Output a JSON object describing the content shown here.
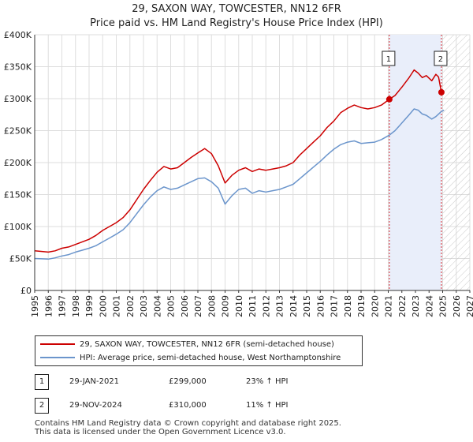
{
  "title": "29, SAXON WAY, TOWCESTER, NN12 6FR",
  "subtitle": "Price paid vs. HM Land Registry's House Price Index (HPI)",
  "colors": {
    "property": "#cc0000",
    "hpi": "#6b95cc",
    "shade": "#e9eefa",
    "marker_line": "#d2222a",
    "grid": "#dddddd"
  },
  "chart_data": {
    "type": "line",
    "xlim": [
      1995,
      2027
    ],
    "ylim": [
      0,
      400000
    ],
    "x_ticks": [
      "1995",
      "1996",
      "1997",
      "1998",
      "1999",
      "2000",
      "2001",
      "2002",
      "2003",
      "2004",
      "2005",
      "2006",
      "2007",
      "2008",
      "2009",
      "2010",
      "2011",
      "2012",
      "2013",
      "2014",
      "2015",
      "2016",
      "2017",
      "2018",
      "2019",
      "2020",
      "2021",
      "2022",
      "2023",
      "2024",
      "2025",
      "2026",
      "2027"
    ],
    "y_ticks": [
      {
        "value": 0,
        "label": "£0"
      },
      {
        "value": 50000,
        "label": "£50K"
      },
      {
        "value": 100000,
        "label": "£100K"
      },
      {
        "value": 150000,
        "label": "£150K"
      },
      {
        "value": 200000,
        "label": "£200K"
      },
      {
        "value": 250000,
        "label": "£250K"
      },
      {
        "value": 300000,
        "label": "£300K"
      },
      {
        "value": 350000,
        "label": "£350K"
      },
      {
        "value": 400000,
        "label": "£400K"
      }
    ],
    "shaded_period": [
      2021.08,
      2024.91
    ],
    "forecast_hatch_from": 2025.0,
    "series": [
      {
        "name": "29, SAXON WAY, TOWCESTER, NN12 6FR (semi-detached house)",
        "color": "#cc0000",
        "points": [
          [
            1995,
            62000
          ],
          [
            1996,
            60000
          ],
          [
            1996.5,
            62000
          ],
          [
            1997,
            66000
          ],
          [
            1997.5,
            68000
          ],
          [
            1998,
            72000
          ],
          [
            1998.5,
            76000
          ],
          [
            1999,
            80000
          ],
          [
            1999.5,
            86000
          ],
          [
            2000,
            94000
          ],
          [
            2000.5,
            100000
          ],
          [
            2001,
            106000
          ],
          [
            2001.5,
            114000
          ],
          [
            2002,
            126000
          ],
          [
            2002.5,
            142000
          ],
          [
            2003,
            158000
          ],
          [
            2003.5,
            172000
          ],
          [
            2004,
            185000
          ],
          [
            2004.5,
            194000
          ],
          [
            2005,
            190000
          ],
          [
            2005.5,
            192000
          ],
          [
            2006,
            200000
          ],
          [
            2006.5,
            208000
          ],
          [
            2007,
            215000
          ],
          [
            2007.5,
            222000
          ],
          [
            2008,
            214000
          ],
          [
            2008.5,
            195000
          ],
          [
            2009,
            168000
          ],
          [
            2009.5,
            180000
          ],
          [
            2010,
            188000
          ],
          [
            2010.5,
            192000
          ],
          [
            2011,
            186000
          ],
          [
            2011.5,
            190000
          ],
          [
            2012,
            188000
          ],
          [
            2012.5,
            190000
          ],
          [
            2013,
            192000
          ],
          [
            2013.5,
            195000
          ],
          [
            2014,
            200000
          ],
          [
            2014.5,
            212000
          ],
          [
            2015,
            222000
          ],
          [
            2015.5,
            232000
          ],
          [
            2016,
            242000
          ],
          [
            2016.5,
            255000
          ],
          [
            2017,
            265000
          ],
          [
            2017.5,
            278000
          ],
          [
            2018,
            285000
          ],
          [
            2018.5,
            290000
          ],
          [
            2019,
            286000
          ],
          [
            2019.5,
            284000
          ],
          [
            2020,
            286000
          ],
          [
            2020.5,
            290000
          ],
          [
            2021.08,
            299000
          ],
          [
            2021.5,
            305000
          ],
          [
            2022,
            318000
          ],
          [
            2022.5,
            332000
          ],
          [
            2022.9,
            345000
          ],
          [
            2023.2,
            340000
          ],
          [
            2023.5,
            333000
          ],
          [
            2023.8,
            336000
          ],
          [
            2024.2,
            328000
          ],
          [
            2024.5,
            338000
          ],
          [
            2024.7,
            334000
          ],
          [
            2024.91,
            310000
          ]
        ]
      },
      {
        "name": "HPI: Average price, semi-detached house, West Northamptonshire",
        "color": "#6b95cc",
        "points": [
          [
            1995,
            50000
          ],
          [
            1996,
            49000
          ],
          [
            1996.5,
            51000
          ],
          [
            1997,
            54000
          ],
          [
            1997.5,
            56000
          ],
          [
            1998,
            60000
          ],
          [
            1998.5,
            63000
          ],
          [
            1999,
            66000
          ],
          [
            1999.5,
            70000
          ],
          [
            2000,
            76000
          ],
          [
            2000.5,
            82000
          ],
          [
            2001,
            88000
          ],
          [
            2001.5,
            95000
          ],
          [
            2002,
            106000
          ],
          [
            2002.5,
            120000
          ],
          [
            2003,
            134000
          ],
          [
            2003.5,
            146000
          ],
          [
            2004,
            156000
          ],
          [
            2004.5,
            162000
          ],
          [
            2005,
            158000
          ],
          [
            2005.5,
            160000
          ],
          [
            2006,
            165000
          ],
          [
            2006.5,
            170000
          ],
          [
            2007,
            175000
          ],
          [
            2007.5,
            176000
          ],
          [
            2008,
            170000
          ],
          [
            2008.5,
            160000
          ],
          [
            2009,
            135000
          ],
          [
            2009.5,
            148000
          ],
          [
            2010,
            158000
          ],
          [
            2010.5,
            160000
          ],
          [
            2011,
            152000
          ],
          [
            2011.5,
            156000
          ],
          [
            2012,
            154000
          ],
          [
            2012.5,
            156000
          ],
          [
            2013,
            158000
          ],
          [
            2013.5,
            162000
          ],
          [
            2014,
            166000
          ],
          [
            2014.5,
            175000
          ],
          [
            2015,
            184000
          ],
          [
            2015.5,
            193000
          ],
          [
            2016,
            202000
          ],
          [
            2016.5,
            212000
          ],
          [
            2017,
            221000
          ],
          [
            2017.5,
            228000
          ],
          [
            2018,
            232000
          ],
          [
            2018.5,
            234000
          ],
          [
            2019,
            230000
          ],
          [
            2019.5,
            231000
          ],
          [
            2020,
            232000
          ],
          [
            2020.5,
            236000
          ],
          [
            2021.08,
            243000
          ],
          [
            2021.5,
            250000
          ],
          [
            2022,
            262000
          ],
          [
            2022.5,
            274000
          ],
          [
            2022.9,
            284000
          ],
          [
            2023.2,
            282000
          ],
          [
            2023.5,
            276000
          ],
          [
            2023.8,
            274000
          ],
          [
            2024.2,
            268000
          ],
          [
            2024.5,
            272000
          ],
          [
            2024.91,
            280000
          ],
          [
            2025.1,
            282000
          ]
        ]
      }
    ],
    "sales": [
      {
        "id": "1",
        "x": 2021.08,
        "y": 299000
      },
      {
        "id": "2",
        "x": 2024.91,
        "y": 310000
      }
    ]
  },
  "legend": {
    "property_label": "29, SAXON WAY, TOWCESTER, NN12 6FR (semi-detached house)",
    "hpi_label": "HPI: Average price, semi-detached house, West Northamptonshire"
  },
  "annotations": [
    {
      "id": "1",
      "date": "29-JAN-2021",
      "price": "£299,000",
      "hpi": "23% ↑ HPI"
    },
    {
      "id": "2",
      "date": "29-NOV-2024",
      "price": "£310,000",
      "hpi": "11% ↑ HPI"
    }
  ],
  "footer": {
    "line1": "Contains HM Land Registry data © Crown copyright and database right 2025.",
    "line2": "This data is licensed under the Open Government Licence v3.0."
  }
}
